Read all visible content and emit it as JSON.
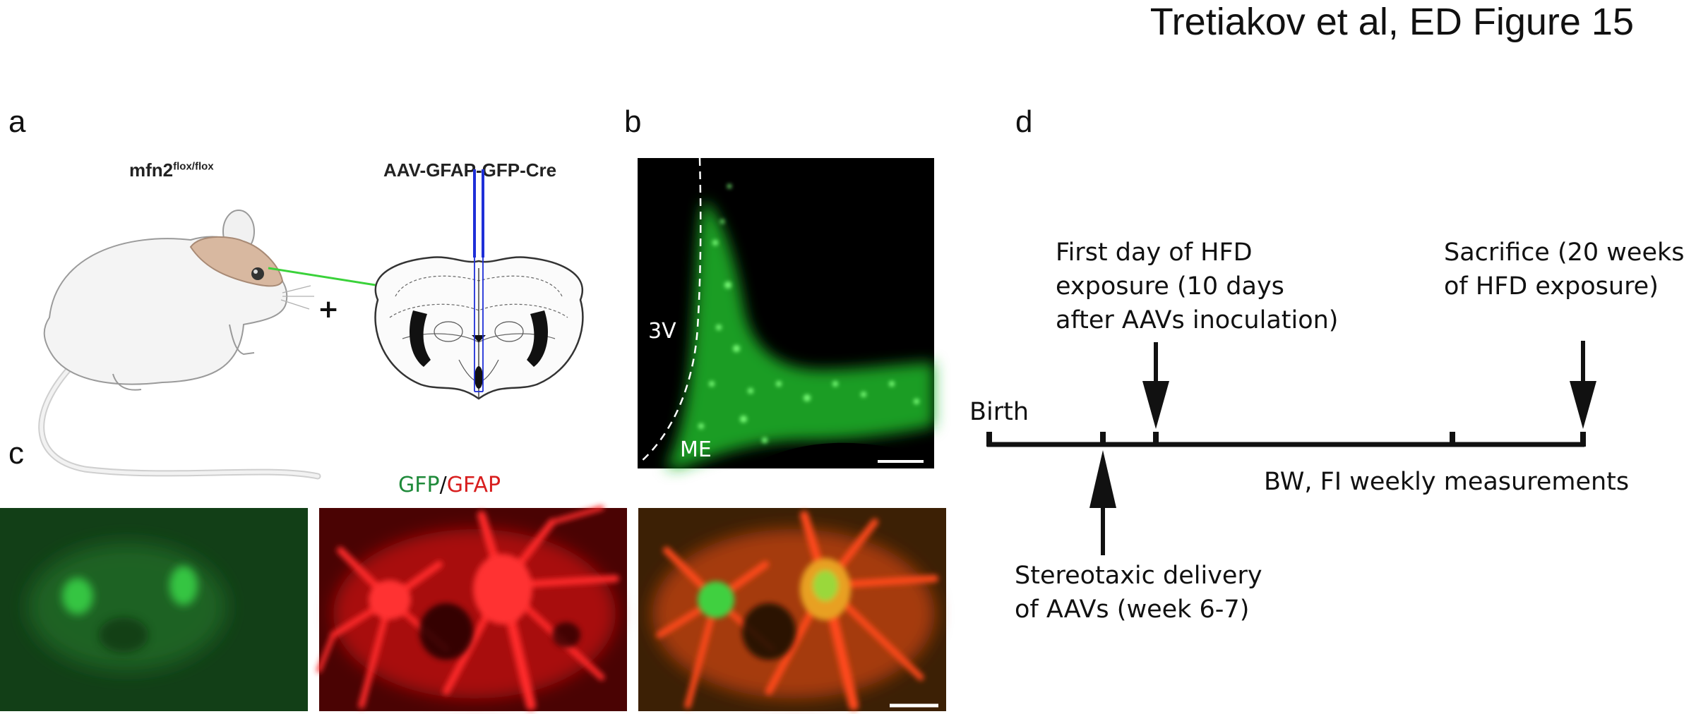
{
  "figure": {
    "title": "Tretiakov et al, ED Figure 15"
  },
  "panel_a": {
    "label": "a",
    "mouse_label_base": "mfn2",
    "mouse_label_sup": "flox/flox",
    "virus_label": "AAV-GFAP-GFP-Cre",
    "plus_sign": "+"
  },
  "panel_b": {
    "label": "b",
    "ventricle_label": "3V",
    "eminence_label": "ME"
  },
  "panel_c": {
    "label": "c",
    "stain_gfp": "GFP",
    "stain_sep": "/",
    "stain_gfap": "GFAP",
    "colors": {
      "gfp": "#1f8a3a",
      "gfap": "#d81e1e"
    }
  },
  "panel_d": {
    "label": "d",
    "birth": "Birth",
    "first_day_lines": [
      "First day of HFD",
      "exposure (10 days",
      "after AAVs inoculation)"
    ],
    "sacrifice_lines": [
      "Sacrifice (20 weeks",
      "of HFD exposure)"
    ],
    "weekly": "BW, FI weekly measurements",
    "stereotaxic_lines": [
      "Stereotaxic delivery",
      "of AAVs (week 6-7)"
    ]
  }
}
